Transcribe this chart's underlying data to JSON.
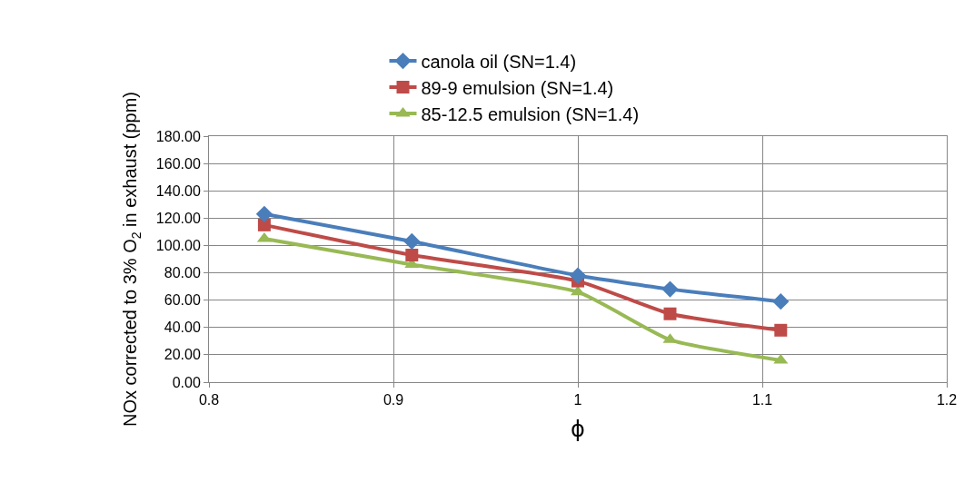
{
  "chart_data": {
    "type": "line",
    "xlabel": "ϕ",
    "ylabel": "NOx corrected to 3% O$_{2}$ in exhaust (ppm)",
    "x": [
      0.83,
      0.91,
      1.0,
      1.05,
      1.11
    ],
    "series": [
      {
        "name": "canola oil (SN=1.4)",
        "color": "#4a7ebb",
        "marker": "diamond",
        "values": [
          123,
          103,
          78,
          68,
          59
        ]
      },
      {
        "name": "89-9 emulsion (SN=1.4)",
        "color": "#be4b48",
        "marker": "square",
        "values": [
          115,
          93,
          74,
          50,
          38
        ]
      },
      {
        "name": "85-12.5 emulsion (SN=1.4)",
        "color": "#98b954",
        "marker": "triangle",
        "values": [
          105,
          86,
          66,
          31,
          16
        ]
      }
    ],
    "xlim": [
      0.8,
      1.2
    ],
    "xticks": [
      0.8,
      0.9,
      1,
      1.1,
      1.2
    ],
    "ylim": [
      0,
      180
    ],
    "yticks": [
      {
        "value": 0,
        "label": "0.00"
      },
      {
        "value": 20,
        "label": "20.00"
      },
      {
        "value": 40,
        "label": "40.00"
      },
      {
        "value": 60,
        "label": "60.00"
      },
      {
        "value": 80,
        "label": "80.00"
      },
      {
        "value": 100,
        "label": "100.00"
      },
      {
        "value": 120,
        "label": "120.00"
      },
      {
        "value": 140,
        "label": "140.00"
      },
      {
        "value": 160,
        "label": "160.00"
      },
      {
        "value": 180,
        "label": "180.00"
      }
    ],
    "grid": true,
    "legend": "top",
    "line_style": "solid"
  }
}
